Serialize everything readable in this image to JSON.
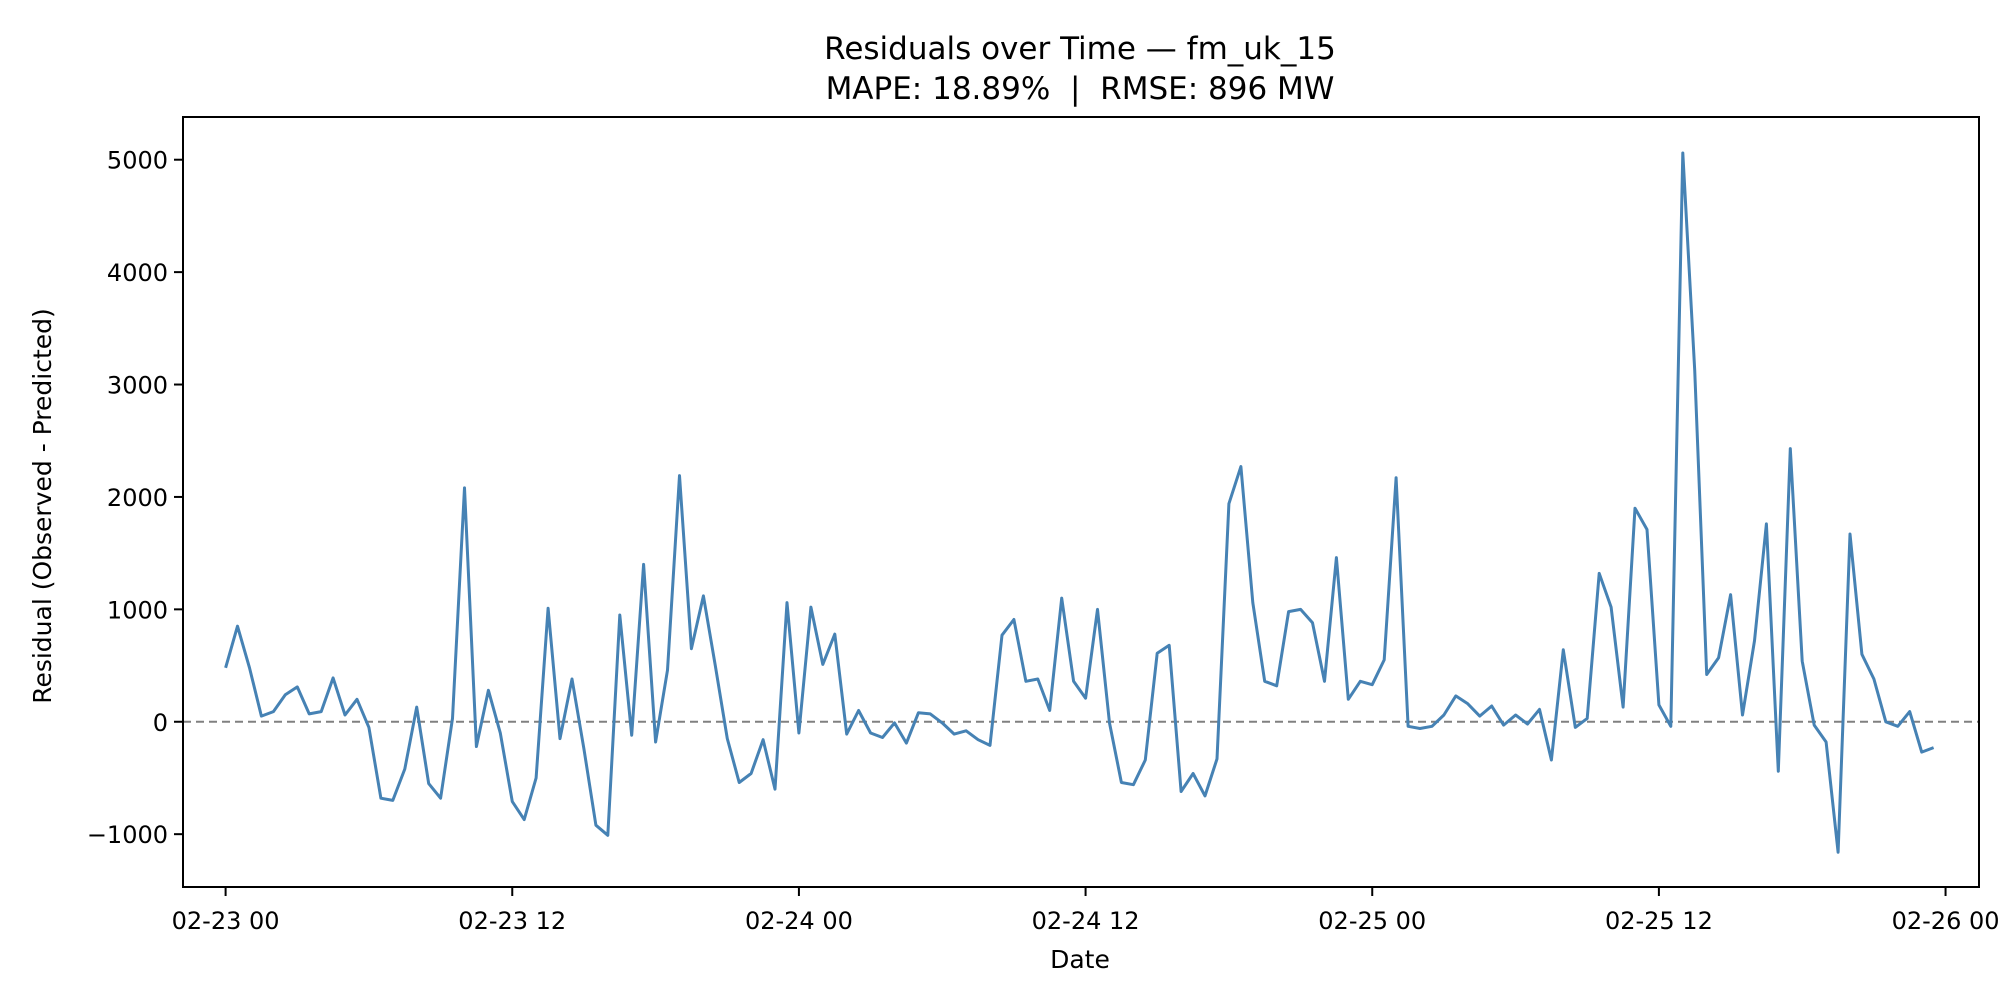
{
  "chart_data": {
    "type": "line",
    "title": "Residuals over Time — fm_uk_15",
    "subtitle": "MAPE: 18.89%  |  RMSE: 896 MW",
    "xlabel": "Date",
    "ylabel": "Residual (Observed - Predicted)",
    "x_tick_labels": [
      "02-23 00",
      "02-23 12",
      "02-24 00",
      "02-24 12",
      "02-25 00",
      "02-25 12",
      "02-26 00"
    ],
    "y_tick_labels": [
      "5000",
      "4000",
      "3000",
      "2000",
      "1000",
      "0",
      "−1000"
    ],
    "y_ticks": [
      5000,
      4000,
      3000,
      2000,
      1000,
      0,
      -1000
    ],
    "xlim": [
      "2024-02-22T22:13:00",
      "2024-02-26T01:24:00"
    ],
    "ylim": [
      -1470,
      5380
    ],
    "grid": false,
    "zero_line": {
      "y": 0,
      "style": "dashed",
      "color": "#808080"
    },
    "series": [
      {
        "color": "#4682b4",
        "x": [
          "2024-02-23T00:00",
          "2024-02-23T00:30",
          "2024-02-23T01:00",
          "2024-02-23T01:30",
          "2024-02-23T02:00",
          "2024-02-23T02:30",
          "2024-02-23T03:00",
          "2024-02-23T03:30",
          "2024-02-23T04:00",
          "2024-02-23T04:30",
          "2024-02-23T05:00",
          "2024-02-23T05:30",
          "2024-02-23T06:00",
          "2024-02-23T06:30",
          "2024-02-23T07:00",
          "2024-02-23T07:30",
          "2024-02-23T08:00",
          "2024-02-23T08:30",
          "2024-02-23T09:00",
          "2024-02-23T09:30",
          "2024-02-23T10:00",
          "2024-02-23T10:30",
          "2024-02-23T11:00",
          "2024-02-23T11:30",
          "2024-02-23T12:00",
          "2024-02-23T12:30",
          "2024-02-23T13:00",
          "2024-02-23T13:30",
          "2024-02-23T14:00",
          "2024-02-23T14:30",
          "2024-02-23T15:00",
          "2024-02-23T15:30",
          "2024-02-23T16:00",
          "2024-02-23T16:30",
          "2024-02-23T17:00",
          "2024-02-23T17:30",
          "2024-02-23T18:00",
          "2024-02-23T18:30",
          "2024-02-23T19:00",
          "2024-02-23T19:30",
          "2024-02-23T20:00",
          "2024-02-23T20:30",
          "2024-02-23T21:00",
          "2024-02-23T21:30",
          "2024-02-23T22:00",
          "2024-02-23T22:30",
          "2024-02-23T23:00",
          "2024-02-23T23:30",
          "2024-02-24T00:00",
          "2024-02-24T00:30",
          "2024-02-24T01:00",
          "2024-02-24T01:30",
          "2024-02-24T02:00",
          "2024-02-24T02:30",
          "2024-02-24T03:00",
          "2024-02-24T03:30",
          "2024-02-24T04:00",
          "2024-02-24T04:30",
          "2024-02-24T05:00",
          "2024-02-24T05:30",
          "2024-02-24T06:00",
          "2024-02-24T06:30",
          "2024-02-24T07:00",
          "2024-02-24T07:30",
          "2024-02-24T08:00",
          "2024-02-24T08:30",
          "2024-02-24T09:00",
          "2024-02-24T09:30",
          "2024-02-24T10:00",
          "2024-02-24T10:30",
          "2024-02-24T11:00",
          "2024-02-24T11:30",
          "2024-02-24T12:00",
          "2024-02-24T12:30",
          "2024-02-24T13:00",
          "2024-02-24T13:30",
          "2024-02-24T14:00",
          "2024-02-24T14:30",
          "2024-02-24T15:00",
          "2024-02-24T15:30",
          "2024-02-24T16:00",
          "2024-02-24T16:30",
          "2024-02-24T17:00",
          "2024-02-24T17:30",
          "2024-02-24T18:00",
          "2024-02-24T18:30",
          "2024-02-24T19:00",
          "2024-02-24T19:30",
          "2024-02-24T20:00",
          "2024-02-24T20:30",
          "2024-02-24T21:00",
          "2024-02-24T21:30",
          "2024-02-24T22:00",
          "2024-02-24T22:30",
          "2024-02-24T23:00",
          "2024-02-24T23:30",
          "2024-02-25T00:00",
          "2024-02-25T00:30",
          "2024-02-25T01:00",
          "2024-02-25T01:30",
          "2024-02-25T02:00",
          "2024-02-25T02:30",
          "2024-02-25T03:00",
          "2024-02-25T03:30",
          "2024-02-25T04:00",
          "2024-02-25T04:30",
          "2024-02-25T05:00",
          "2024-02-25T05:30",
          "2024-02-25T06:00",
          "2024-02-25T06:30",
          "2024-02-25T07:00",
          "2024-02-25T07:30",
          "2024-02-25T08:00",
          "2024-02-25T08:30",
          "2024-02-25T09:00",
          "2024-02-25T09:30",
          "2024-02-25T10:00",
          "2024-02-25T10:30",
          "2024-02-25T11:00",
          "2024-02-25T11:30",
          "2024-02-25T12:00",
          "2024-02-25T12:30",
          "2024-02-25T13:00",
          "2024-02-25T13:30",
          "2024-02-25T14:00",
          "2024-02-25T14:30",
          "2024-02-25T15:00",
          "2024-02-25T15:30",
          "2024-02-25T16:00",
          "2024-02-25T16:30",
          "2024-02-25T17:00",
          "2024-02-25T17:30",
          "2024-02-25T18:00",
          "2024-02-25T18:30",
          "2024-02-25T19:00",
          "2024-02-25T19:30",
          "2024-02-25T20:00",
          "2024-02-25T20:30",
          "2024-02-25T21:00",
          "2024-02-25T21:30",
          "2024-02-25T22:00",
          "2024-02-25T22:30",
          "2024-02-25T23:00",
          "2024-02-25T23:30"
        ],
        "y": [
          480,
          850,
          480,
          50,
          90,
          240,
          310,
          70,
          90,
          390,
          60,
          200,
          -50,
          -680,
          -700,
          -420,
          130,
          -550,
          -680,
          30,
          2080,
          -220,
          280,
          -100,
          -710,
          -870,
          -500,
          1010,
          -150,
          380,
          -240,
          -920,
          -1010,
          950,
          -120,
          1400,
          -180,
          460,
          2190,
          650,
          1120,
          500,
          -150,
          -540,
          -460,
          -160,
          -600,
          1060,
          -100,
          1020,
          510,
          780,
          -110,
          100,
          -100,
          -140,
          -10,
          -190,
          80,
          70,
          -10,
          -110,
          -80,
          -160,
          -210,
          770,
          910,
          360,
          380,
          100,
          1100,
          360,
          210,
          1000,
          -10,
          -540,
          -560,
          -340,
          610,
          680,
          -620,
          -460,
          -660,
          -330,
          1940,
          2270,
          1060,
          360,
          320,
          980,
          1000,
          880,
          360,
          1460,
          200,
          360,
          330,
          550,
          2170,
          -40,
          -60,
          -40,
          60,
          230,
          160,
          50,
          140,
          -30,
          60,
          -20,
          110,
          -340,
          640,
          -50,
          30,
          1320,
          1020,
          130,
          1900,
          1710,
          150,
          -40,
          5060,
          3130,
          420,
          570,
          1130,
          60,
          720,
          1760,
          -440,
          2430,
          540,
          -30,
          -180,
          -1160,
          1670,
          600,
          380,
          0,
          -40,
          90,
          -270,
          -230
        ]
      }
    ]
  }
}
